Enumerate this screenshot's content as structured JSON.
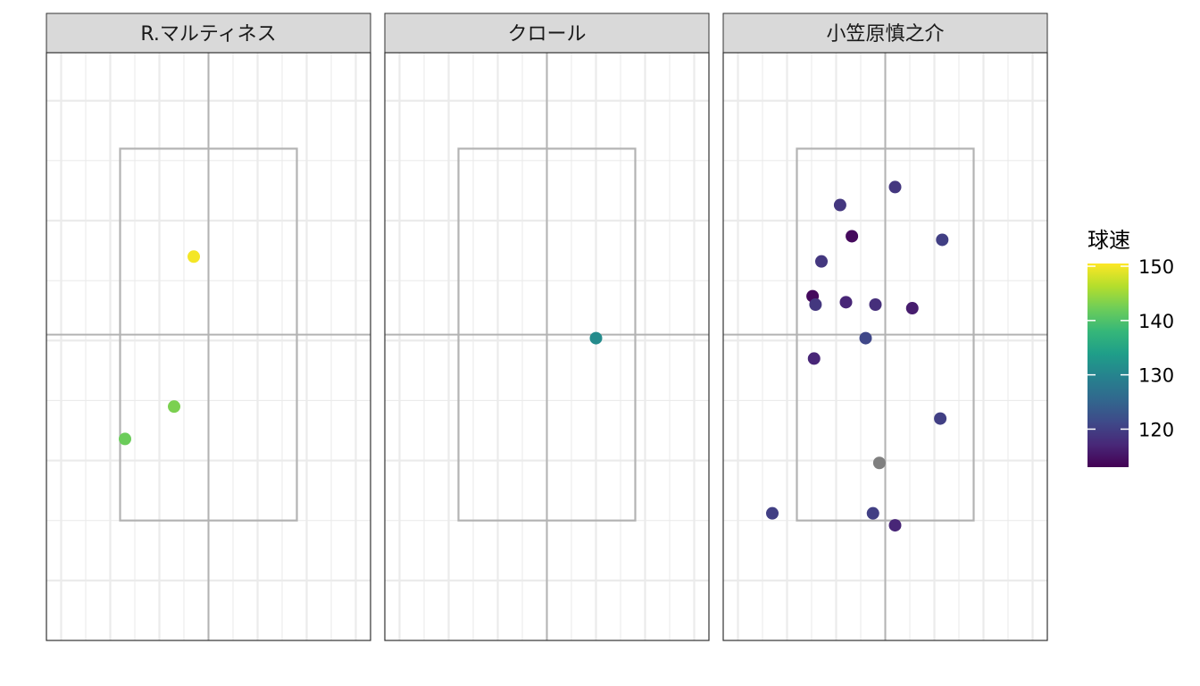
{
  "chart_data": {
    "type": "scatter",
    "facets": [
      {
        "label": "R.マルティネス",
        "points": [
          {
            "x": -0.3,
            "y": 2.7,
            "speed": 150
          },
          {
            "x": -0.7,
            "y": 1.45,
            "speed": 143
          },
          {
            "x": -1.7,
            "y": 1.18,
            "speed": 142
          }
        ]
      },
      {
        "label": "クロール",
        "points": [
          {
            "x": 1.0,
            "y": 2.02,
            "speed": 131
          }
        ]
      },
      {
        "label": "小笠原慎之介",
        "points": [
          {
            "x": 0.2,
            "y": 3.28,
            "speed": 119
          },
          {
            "x": -0.92,
            "y": 3.13,
            "speed": 119
          },
          {
            "x": -0.68,
            "y": 2.87,
            "speed": 114
          },
          {
            "x": 1.16,
            "y": 2.84,
            "speed": 120
          },
          {
            "x": -1.3,
            "y": 2.66,
            "speed": 119
          },
          {
            "x": -1.48,
            "y": 2.37,
            "speed": 114
          },
          {
            "x": -1.42,
            "y": 2.3,
            "speed": 119
          },
          {
            "x": -0.8,
            "y": 2.32,
            "speed": 117
          },
          {
            "x": -0.2,
            "y": 2.3,
            "speed": 118
          },
          {
            "x": 0.55,
            "y": 2.27,
            "speed": 116
          },
          {
            "x": -0.4,
            "y": 2.02,
            "speed": 121
          },
          {
            "x": -1.45,
            "y": 1.85,
            "speed": 117
          },
          {
            "x": 1.12,
            "y": 1.35,
            "speed": 120
          },
          {
            "x": -0.12,
            "y": 0.98,
            "speed": null
          },
          {
            "x": -2.3,
            "y": 0.56,
            "speed": 120
          },
          {
            "x": -0.25,
            "y": 0.56,
            "speed": 120
          },
          {
            "x": 0.2,
            "y": 0.46,
            "speed": 117
          }
        ]
      }
    ],
    "strike_zone": {
      "x": [
        -1.8,
        1.8
      ],
      "y": [
        0.5,
        3.6
      ]
    },
    "xlim": [
      -3.3,
      3.3
    ],
    "ylim": [
      -0.5,
      4.4
    ],
    "grid": true,
    "legend": {
      "title": "球速",
      "position": "right",
      "ticks": [
        120,
        130,
        140,
        150
      ],
      "range": [
        113,
        150.5
      ],
      "palette": [
        "#440154",
        "#482878",
        "#3E4A89",
        "#31688E",
        "#26828E",
        "#1F9E89",
        "#35B779",
        "#6DCD59",
        "#B4DE2C",
        "#FDE725"
      ],
      "na_color": "#7F7F7F"
    }
  }
}
